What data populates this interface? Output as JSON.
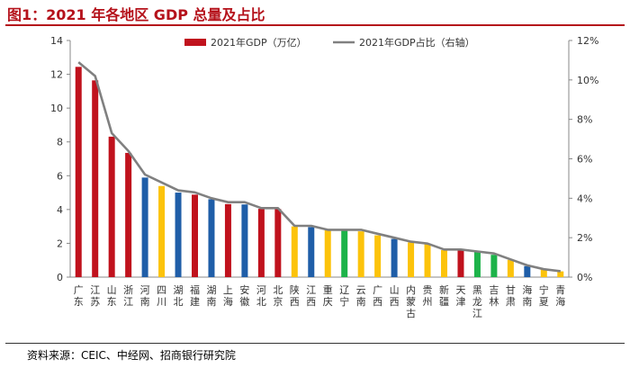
{
  "page": {
    "title": "图1：2021 年各地区 GDP 总量及占比",
    "source": "资料来源：CEIC、中经网、招商银行研究院"
  },
  "chart_data": {
    "type": "bar",
    "title": "",
    "categories": [
      "广东",
      "江苏",
      "山东",
      "浙江",
      "河南",
      "四川",
      "湖北",
      "福建",
      "湖南",
      "上海",
      "安徽",
      "河北",
      "北京",
      "陕西",
      "江西",
      "重庆",
      "辽宁",
      "云南",
      "广西",
      "山西",
      "内蒙古",
      "贵州",
      "新疆",
      "天津",
      "黑龙江",
      "吉林",
      "甘肃",
      "海南",
      "宁夏",
      "青海"
    ],
    "series": [
      {
        "name": "2021年GDP（万亿）",
        "type": "bar",
        "axis": "left",
        "values": [
          12.44,
          11.64,
          8.31,
          7.35,
          5.89,
          5.39,
          5.0,
          4.88,
          4.61,
          4.32,
          4.3,
          4.04,
          4.03,
          3.0,
          2.96,
          2.79,
          2.76,
          2.71,
          2.47,
          2.26,
          2.05,
          1.96,
          1.6,
          1.57,
          1.49,
          1.32,
          1.02,
          0.65,
          0.46,
          0.34
        ]
      },
      {
        "name": "2021年GDP占比（右轴）",
        "type": "line",
        "axis": "right",
        "values": [
          10.9,
          10.2,
          7.3,
          6.4,
          5.2,
          4.8,
          4.4,
          4.3,
          4.0,
          3.8,
          3.8,
          3.5,
          3.5,
          2.6,
          2.6,
          2.4,
          2.4,
          2.4,
          2.2,
          2.0,
          1.8,
          1.7,
          1.4,
          1.4,
          1.3,
          1.2,
          0.9,
          0.6,
          0.4,
          0.3
        ]
      }
    ],
    "bar_colors": [
      "#c0121d",
      "#c0121d",
      "#c0121d",
      "#c0121d",
      "#1f5ea8",
      "#fcc30b",
      "#1f5ea8",
      "#c0121d",
      "#1f5ea8",
      "#c0121d",
      "#1f5ea8",
      "#c0121d",
      "#c0121d",
      "#fcc30b",
      "#1f5ea8",
      "#fcc30b",
      "#1db34a",
      "#fcc30b",
      "#fcc30b",
      "#1f5ea8",
      "#fcc30b",
      "#fcc30b",
      "#fcc30b",
      "#c0121d",
      "#1db34a",
      "#1db34a",
      "#fcc30b",
      "#1f5ea8",
      "#fcc30b",
      "#fcc30b"
    ],
    "line_color": "#808080",
    "legend_bar_color": "#c0121d",
    "y_left": {
      "min": 0,
      "max": 14,
      "step": 2,
      "ticks": [
        "0",
        "2",
        "4",
        "6",
        "8",
        "10",
        "12",
        "14"
      ]
    },
    "y_right": {
      "min": 0,
      "max": 12,
      "step": 2,
      "ticks": [
        "0%",
        "2%",
        "4%",
        "6%",
        "8%",
        "10%",
        "12%"
      ]
    },
    "grid": false,
    "legend_position": "top-center"
  }
}
